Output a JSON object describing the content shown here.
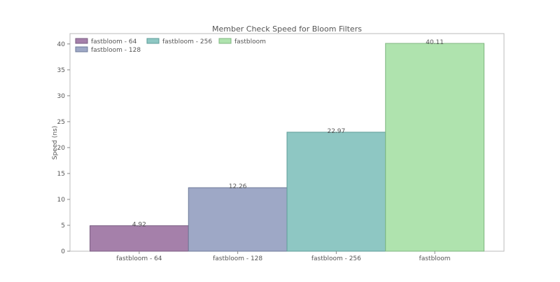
{
  "chart_data": {
    "type": "bar",
    "title": "Member Check Speed for Bloom Filters",
    "xlabel": "",
    "ylabel": "Speed (ns)",
    "categories": [
      "fastbloom - 64",
      "fastbloom - 128",
      "fastbloom - 256",
      "fastbloom"
    ],
    "values": [
      4.92,
      12.26,
      22.97,
      40.11
    ],
    "data_labels": [
      "4.92",
      "12.26",
      "22.97",
      "40.11"
    ],
    "colors": [
      "#a580aa",
      "#9ea8c6",
      "#8ec7c3",
      "#afe3ae"
    ],
    "edge_colors": [
      "#7a5e82",
      "#6e7a99",
      "#5f9c98",
      "#7fb680"
    ],
    "ylim": [
      0,
      42
    ],
    "yticks": [
      0,
      5,
      10,
      15,
      20,
      25,
      30,
      35,
      40
    ],
    "ytick_labels": [
      "0",
      "5",
      "10",
      "15",
      "20",
      "25",
      "30",
      "35",
      "40"
    ],
    "grid": false,
    "legend": {
      "position": "top-left",
      "entries": [
        "fastbloom - 64",
        "fastbloom - 128",
        "fastbloom - 256",
        "fastbloom"
      ]
    }
  }
}
